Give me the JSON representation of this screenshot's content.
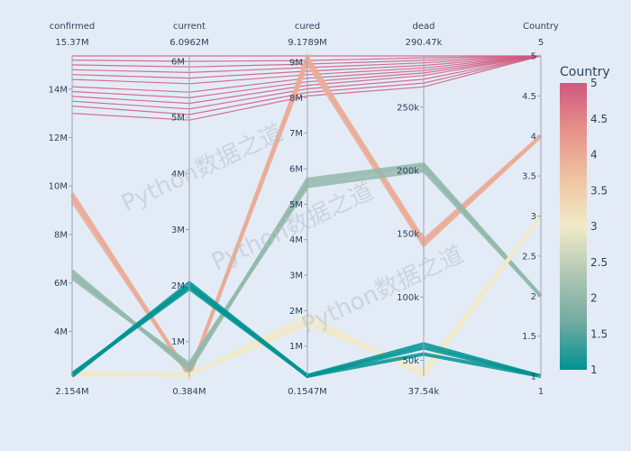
{
  "chart_data": {
    "type": "parallel_coordinates",
    "watermark": "Python数据之道",
    "color_dimension": "Country",
    "colorscale": [
      "#009392",
      "#72aaa1",
      "#b1c7b3",
      "#f1eac8",
      "#efc4a1",
      "#e6928b",
      "#d0587e"
    ],
    "colorbar": {
      "title": "Country",
      "range": [
        1,
        5
      ],
      "ticks": [
        1,
        1.5,
        2,
        2.5,
        3,
        3.5,
        4,
        4.5,
        5
      ]
    },
    "dimensions": [
      {
        "label": "confirmed",
        "range": [
          2.154,
          15.37
        ],
        "max_label": "15.37M",
        "min_label": "2.154M",
        "ticks": [
          4,
          6,
          8,
          10,
          12,
          14
        ],
        "tick_labels": [
          "4M",
          "6M",
          "8M",
          "10M",
          "12M",
          "14M"
        ],
        "unit": "M"
      },
      {
        "label": "current",
        "range": [
          0.384,
          6.0962
        ],
        "max_label": "6.0962M",
        "min_label": "0.384M",
        "ticks": [
          1,
          2,
          3,
          4,
          5,
          6
        ],
        "tick_labels": [
          "1M",
          "2M",
          "3M",
          "4M",
          "5M",
          "6M"
        ],
        "unit": "M"
      },
      {
        "label": "cured",
        "range": [
          0.1547,
          9.1789
        ],
        "max_label": "9.1789M",
        "min_label": "0.1547M",
        "ticks": [
          1,
          2,
          3,
          4,
          5,
          6,
          7,
          8,
          9
        ],
        "tick_labels": [
          "1M",
          "2M",
          "3M",
          "4M",
          "5M",
          "6M",
          "7M",
          "8M",
          "9M"
        ],
        "unit": "M"
      },
      {
        "label": "dead",
        "range": [
          37.54,
          290.47
        ],
        "max_label": "290.47k",
        "min_label": "37.54k",
        "ticks": [
          50,
          100,
          150,
          200,
          250
        ],
        "tick_labels": [
          "50k",
          "100k",
          "150k",
          "200k",
          "250k"
        ],
        "unit": "k"
      },
      {
        "label": "Country",
        "range": [
          1,
          5
        ],
        "max_label": "5",
        "min_label": "1",
        "ticks": [
          1,
          1.5,
          2,
          2.5,
          3,
          3.5,
          4,
          4.5,
          5
        ],
        "tick_labels": [
          "1",
          "1.5",
          "2",
          "2.5",
          "3",
          "3.5",
          "4",
          "4.5",
          "5"
        ],
        "unit": ""
      }
    ],
    "rows": [
      [
        15.37,
        6.0962,
        9.1789,
        290.47,
        5
      ],
      [
        15.2,
        6.0,
        9.05,
        289,
        5
      ],
      [
        15.0,
        5.9,
        8.95,
        287,
        5
      ],
      [
        14.8,
        5.8,
        8.85,
        285,
        5
      ],
      [
        14.6,
        5.7,
        8.75,
        283,
        5
      ],
      [
        14.4,
        5.6,
        8.65,
        281,
        5
      ],
      [
        14.1,
        5.45,
        8.55,
        279,
        5
      ],
      [
        13.9,
        5.35,
        8.45,
        277,
        5
      ],
      [
        13.7,
        5.25,
        8.35,
        275,
        5
      ],
      [
        13.5,
        5.15,
        8.25,
        272,
        5
      ],
      [
        13.3,
        5.05,
        8.15,
        269,
        5
      ],
      [
        13.0,
        4.95,
        8.05,
        266,
        5
      ],
      [
        9.7,
        0.39,
        9.15,
        145,
        4
      ],
      [
        9.6,
        0.4,
        9.1,
        143,
        4
      ],
      [
        9.4,
        0.41,
        9.0,
        141,
        4
      ],
      [
        6.5,
        0.5,
        5.7,
        205,
        2
      ],
      [
        6.35,
        0.55,
        5.6,
        203,
        2
      ],
      [
        6.2,
        0.6,
        5.5,
        200,
        2
      ],
      [
        2.3,
        0.39,
        1.85,
        38,
        3
      ],
      [
        2.25,
        0.41,
        1.7,
        40,
        3
      ],
      [
        2.2,
        0.42,
        1.6,
        42,
        3
      ],
      [
        2.154,
        2.05,
        0.1547,
        55,
        1
      ],
      [
        2.2,
        2.0,
        0.16,
        60,
        1
      ],
      [
        2.25,
        1.95,
        0.17,
        63,
        1
      ]
    ]
  }
}
